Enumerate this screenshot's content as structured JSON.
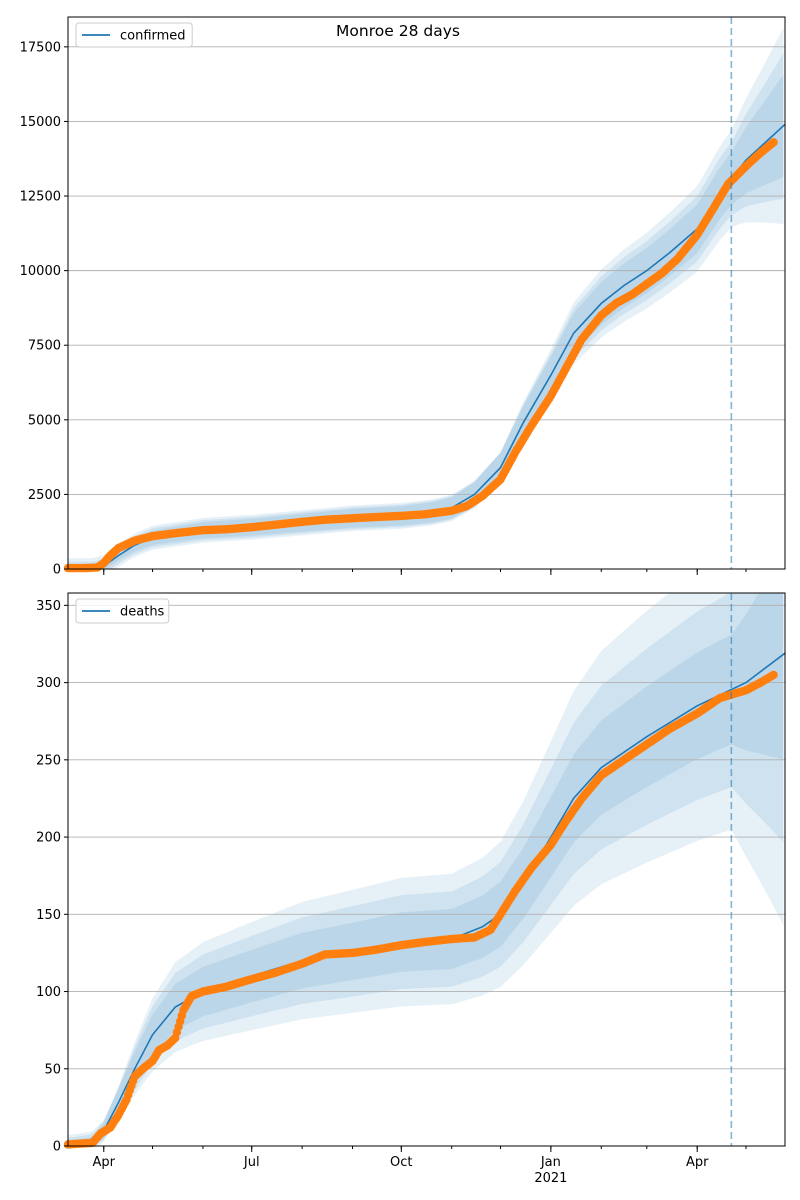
{
  "figure": {
    "title": "Monroe 28 days"
  },
  "colors": {
    "model_line": "#1f77b4",
    "observed": "#ff7f0e",
    "band": "#1f77b4",
    "grid": "#b0b0b0",
    "vline": "#1f77b4"
  },
  "chart_data": [
    {
      "type": "line",
      "panel": "top",
      "legend": [
        "confirmed"
      ],
      "legend_position": "upper-left",
      "grid": "y-only",
      "x_ticks": [
        "Apr",
        "Jul",
        "Oct",
        "Jan",
        "Apr"
      ],
      "x_year_label": "2021",
      "y_ticks": [
        0,
        2500,
        5000,
        7500,
        10000,
        12500,
        15000,
        17500
      ],
      "xlim": [
        "2020-03-10",
        "2021-05-25"
      ],
      "ylim": [
        0,
        18500
      ],
      "forecast_start": "2021-04-22",
      "series": [
        {
          "name": "confirmed",
          "kind": "model-median",
          "x": [
            "2020-03-10",
            "2020-03-25",
            "2020-04-01",
            "2020-04-10",
            "2020-04-20",
            "2020-05-01",
            "2020-06-01",
            "2020-07-01",
            "2020-08-01",
            "2020-09-01",
            "2020-10-01",
            "2020-10-20",
            "2020-11-01",
            "2020-11-15",
            "2020-12-01",
            "2020-12-15",
            "2021-01-01",
            "2021-01-15",
            "2021-02-01",
            "2021-02-15",
            "2021-03-01",
            "2021-03-15",
            "2021-04-01",
            "2021-04-15",
            "2021-05-01",
            "2021-05-25"
          ],
          "values": [
            0,
            0,
            100,
            450,
            800,
            1050,
            1300,
            1400,
            1550,
            1700,
            1780,
            1900,
            2050,
            2500,
            3400,
            4900,
            6500,
            7900,
            8900,
            9500,
            10000,
            10600,
            11400,
            12600,
            13700,
            14900
          ]
        },
        {
          "name": "",
          "kind": "observed",
          "x": [
            "2020-03-10",
            "2020-03-20",
            "2020-03-28",
            "2020-04-01",
            "2020-04-05",
            "2020-04-10",
            "2020-04-20",
            "2020-05-01",
            "2020-05-15",
            "2020-06-01",
            "2020-06-15",
            "2020-07-01",
            "2020-07-15",
            "2020-08-01",
            "2020-08-15",
            "2020-09-01",
            "2020-09-15",
            "2020-10-01",
            "2020-10-15",
            "2020-11-01",
            "2020-11-10",
            "2020-11-20",
            "2020-12-01",
            "2020-12-10",
            "2020-12-20",
            "2021-01-01",
            "2021-01-10",
            "2021-01-20",
            "2021-02-01",
            "2021-02-10",
            "2021-02-20",
            "2021-03-01",
            "2021-03-10",
            "2021-03-20",
            "2021-04-01",
            "2021-04-10",
            "2021-04-20",
            "2021-05-01",
            "2021-05-10",
            "2021-05-18"
          ],
          "values": [
            30,
            30,
            50,
            200,
            450,
            700,
            950,
            1100,
            1200,
            1300,
            1330,
            1400,
            1480,
            1580,
            1650,
            1700,
            1740,
            1780,
            1830,
            1950,
            2100,
            2450,
            3000,
            3900,
            4800,
            5800,
            6700,
            7700,
            8500,
            8900,
            9200,
            9550,
            9900,
            10400,
            11200,
            12000,
            12900,
            13500,
            13950,
            14300
          ]
        }
      ]
    },
    {
      "type": "line",
      "panel": "bottom",
      "legend": [
        "deaths"
      ],
      "legend_position": "upper-left",
      "grid": "y-only",
      "x_ticks": [
        "Apr",
        "Jul",
        "Oct",
        "Jan",
        "Apr"
      ],
      "x_year_label": "2021",
      "y_ticks": [
        0,
        50,
        100,
        150,
        200,
        250,
        300,
        350
      ],
      "xlim": [
        "2020-03-10",
        "2021-05-25"
      ],
      "ylim": [
        0,
        358
      ],
      "forecast_start": "2021-04-22",
      "series": [
        {
          "name": "deaths",
          "kind": "model-median",
          "x": [
            "2020-03-10",
            "2020-03-25",
            "2020-04-01",
            "2020-04-10",
            "2020-04-20",
            "2020-05-01",
            "2020-05-15",
            "2020-06-01",
            "2020-07-01",
            "2020-08-01",
            "2020-09-01",
            "2020-10-01",
            "2020-11-01",
            "2020-11-20",
            "2020-12-01",
            "2020-12-15",
            "2021-01-01",
            "2021-01-15",
            "2021-02-01",
            "2021-03-01",
            "2021-04-01",
            "2021-05-01",
            "2021-05-25"
          ],
          "values": [
            1,
            3,
            10,
            28,
            50,
            72,
            90,
            100,
            110,
            120,
            126,
            132,
            134,
            142,
            150,
            170,
            200,
            225,
            245,
            265,
            285,
            300,
            319
          ]
        },
        {
          "name": "",
          "kind": "observed",
          "x": [
            "2020-03-10",
            "2020-03-25",
            "2020-03-30",
            "2020-04-05",
            "2020-04-10",
            "2020-04-15",
            "2020-04-20",
            "2020-04-25",
            "2020-05-01",
            "2020-05-05",
            "2020-05-10",
            "2020-05-15",
            "2020-05-20",
            "2020-05-25",
            "2020-06-01",
            "2020-06-15",
            "2020-07-01",
            "2020-07-15",
            "2020-08-01",
            "2020-08-15",
            "2020-09-01",
            "2020-09-15",
            "2020-10-01",
            "2020-10-15",
            "2020-11-01",
            "2020-11-15",
            "2020-11-25",
            "2020-12-01",
            "2020-12-10",
            "2020-12-20",
            "2021-01-01",
            "2021-01-10",
            "2021-01-20",
            "2021-02-01",
            "2021-02-15",
            "2021-03-01",
            "2021-03-15",
            "2021-04-01",
            "2021-04-15",
            "2021-05-01",
            "2021-05-10",
            "2021-05-18"
          ],
          "values": [
            1,
            2,
            8,
            12,
            20,
            30,
            45,
            50,
            55,
            62,
            65,
            70,
            88,
            97,
            100,
            103,
            108,
            112,
            118,
            124,
            125,
            127,
            130,
            132,
            134,
            135,
            140,
            150,
            165,
            180,
            195,
            210,
            225,
            240,
            250,
            260,
            270,
            280,
            290,
            295,
            300,
            305
          ]
        }
      ]
    }
  ]
}
